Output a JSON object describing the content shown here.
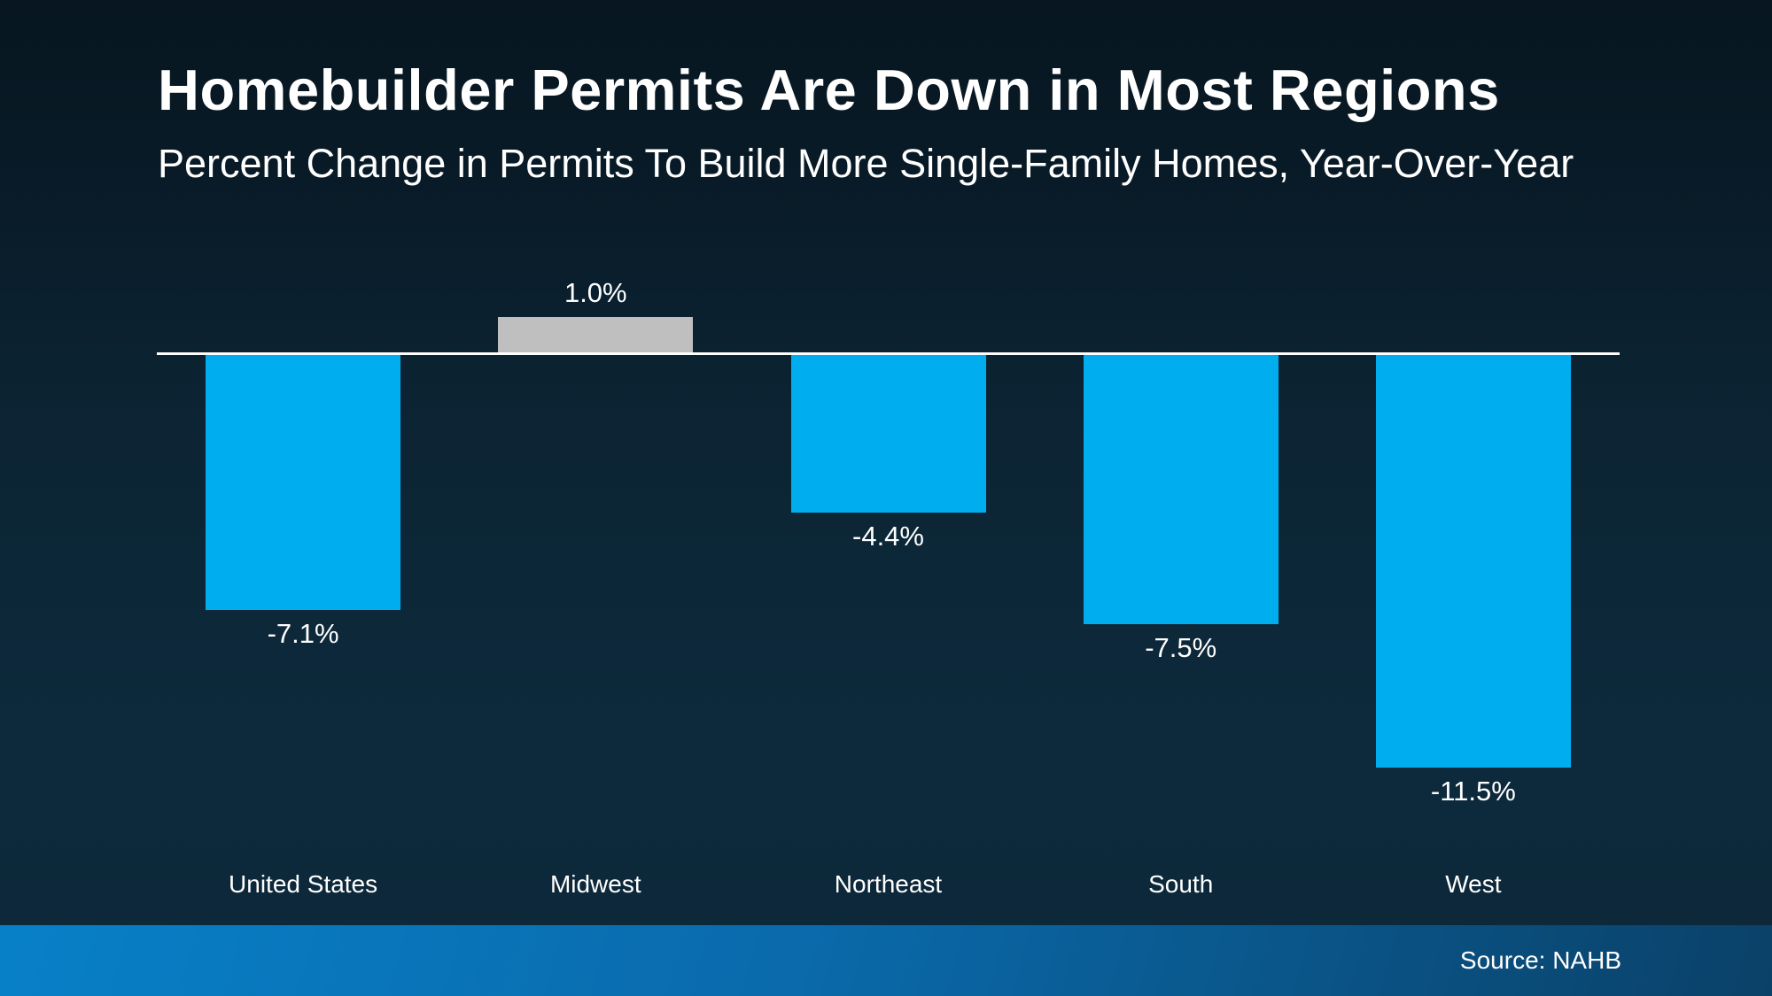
{
  "slide": {
    "title": "Homebuilder Permits Are Down in Most Regions",
    "subtitle": "Percent Change in Permits To Build More Single-Family Homes, Year-Over-Year",
    "source": "Source: NAHB"
  },
  "chart_data": {
    "type": "bar",
    "title": "Homebuilder Permits Are Down in Most Regions",
    "subtitle": "Percent Change in Permits To Build More Single-Family Homes, Year-Over-Year",
    "categories": [
      "United States",
      "Midwest",
      "Northeast",
      "South",
      "West"
    ],
    "values": [
      -7.1,
      1.0,
      -4.4,
      -7.5,
      -11.5
    ],
    "value_labels": [
      "-7.1%",
      "1.0%",
      "-4.4%",
      "-7.5%",
      "-11.5%"
    ],
    "xlabel": "",
    "ylabel": "",
    "ylim": [
      -12,
      2
    ],
    "grid": false,
    "legend": "none",
    "axes_shown": "zero-baseline-only",
    "colors": {
      "negative_bar": "#00AEEF",
      "positive_bar": "#BFBFBF",
      "baseline": "#FFFFFF",
      "text": "#FFFFFF"
    },
    "annotations": [],
    "source_note": "Source: NAHB"
  },
  "footer": {
    "source_label": "Source: NAHB",
    "gradient_left": "#0880C8",
    "gradient_right": "#0A4168"
  }
}
